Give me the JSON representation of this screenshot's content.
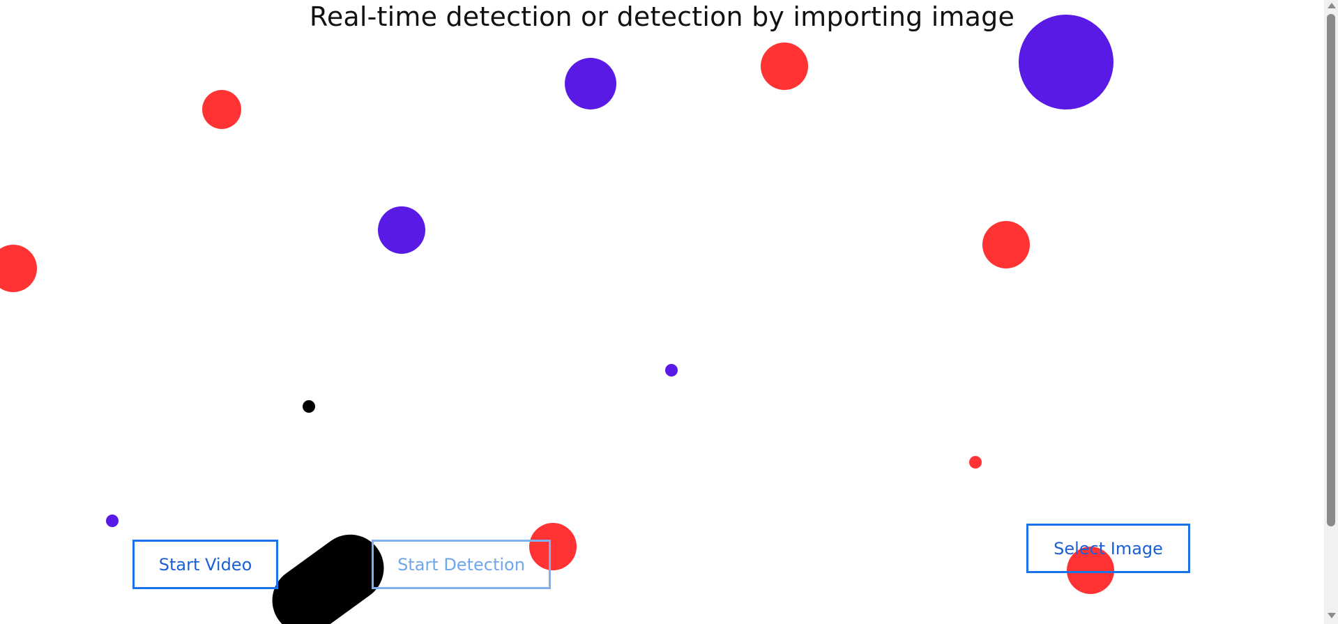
{
  "header": {
    "title": "Real-time detection or detection by importing image"
  },
  "buttons": {
    "start_video": "Start Video",
    "start_detection": "Start Detection",
    "select_image": "Select Image"
  },
  "colors": {
    "red": "#ff3333",
    "purple": "#5a1ae6",
    "black": "#000000",
    "button_blue": "#1a73e8",
    "button_disabled": "#7fb1f2"
  }
}
